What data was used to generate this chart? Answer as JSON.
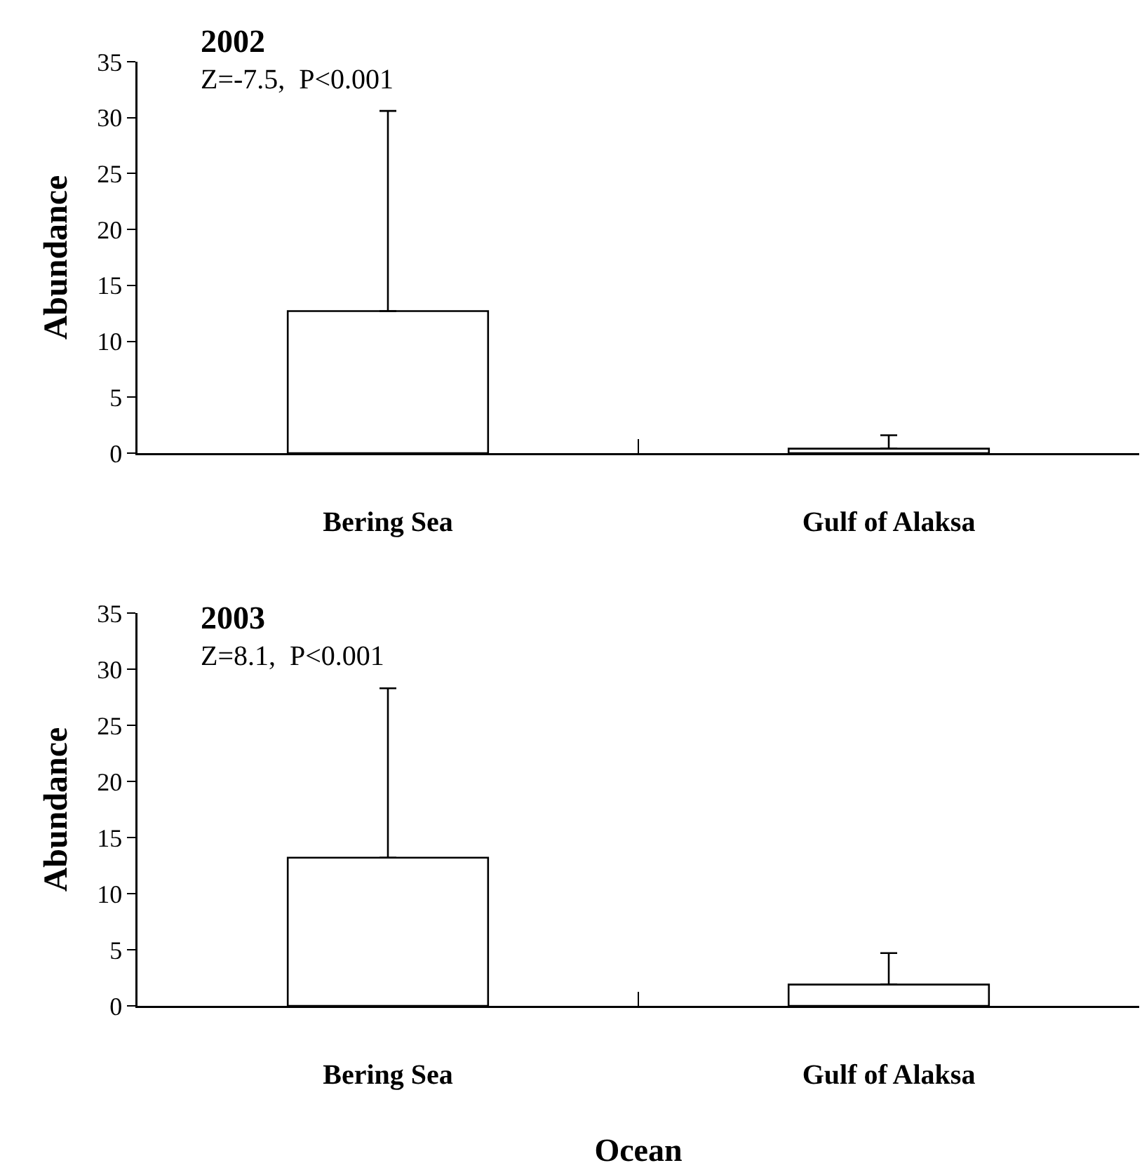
{
  "chart_data": [
    {
      "type": "bar",
      "title": "2002",
      "subtitle": "Z=-7.5,  P<0.001",
      "ylabel": "Abundance",
      "categories": [
        "Bering Sea",
        "Gulf of Alaksa"
      ],
      "values": [
        12.7,
        0.4
      ],
      "errors": [
        [
          12.7,
          30.6
        ],
        [
          0.4,
          1.6
        ]
      ],
      "color": "#ffffff",
      "ylim": [
        0,
        35
      ],
      "yticks": [
        0,
        5,
        10,
        15,
        20,
        25,
        30,
        35
      ],
      "grid": false
    },
    {
      "type": "bar",
      "title": "2003",
      "subtitle": "Z=8.1,  P<0.001",
      "ylabel": "Abundance",
      "xlabel": "Ocean",
      "categories": [
        "Bering Sea",
        "Gulf of Alaksa"
      ],
      "values": [
        13.2,
        1.9
      ],
      "errors": [
        [
          13.2,
          28.3
        ],
        [
          1.9,
          4.7
        ]
      ],
      "color": "#ffffff",
      "ylim": [
        0,
        35
      ],
      "yticks": [
        0,
        5,
        10,
        15,
        20,
        25,
        30,
        35
      ],
      "grid": false
    }
  ]
}
